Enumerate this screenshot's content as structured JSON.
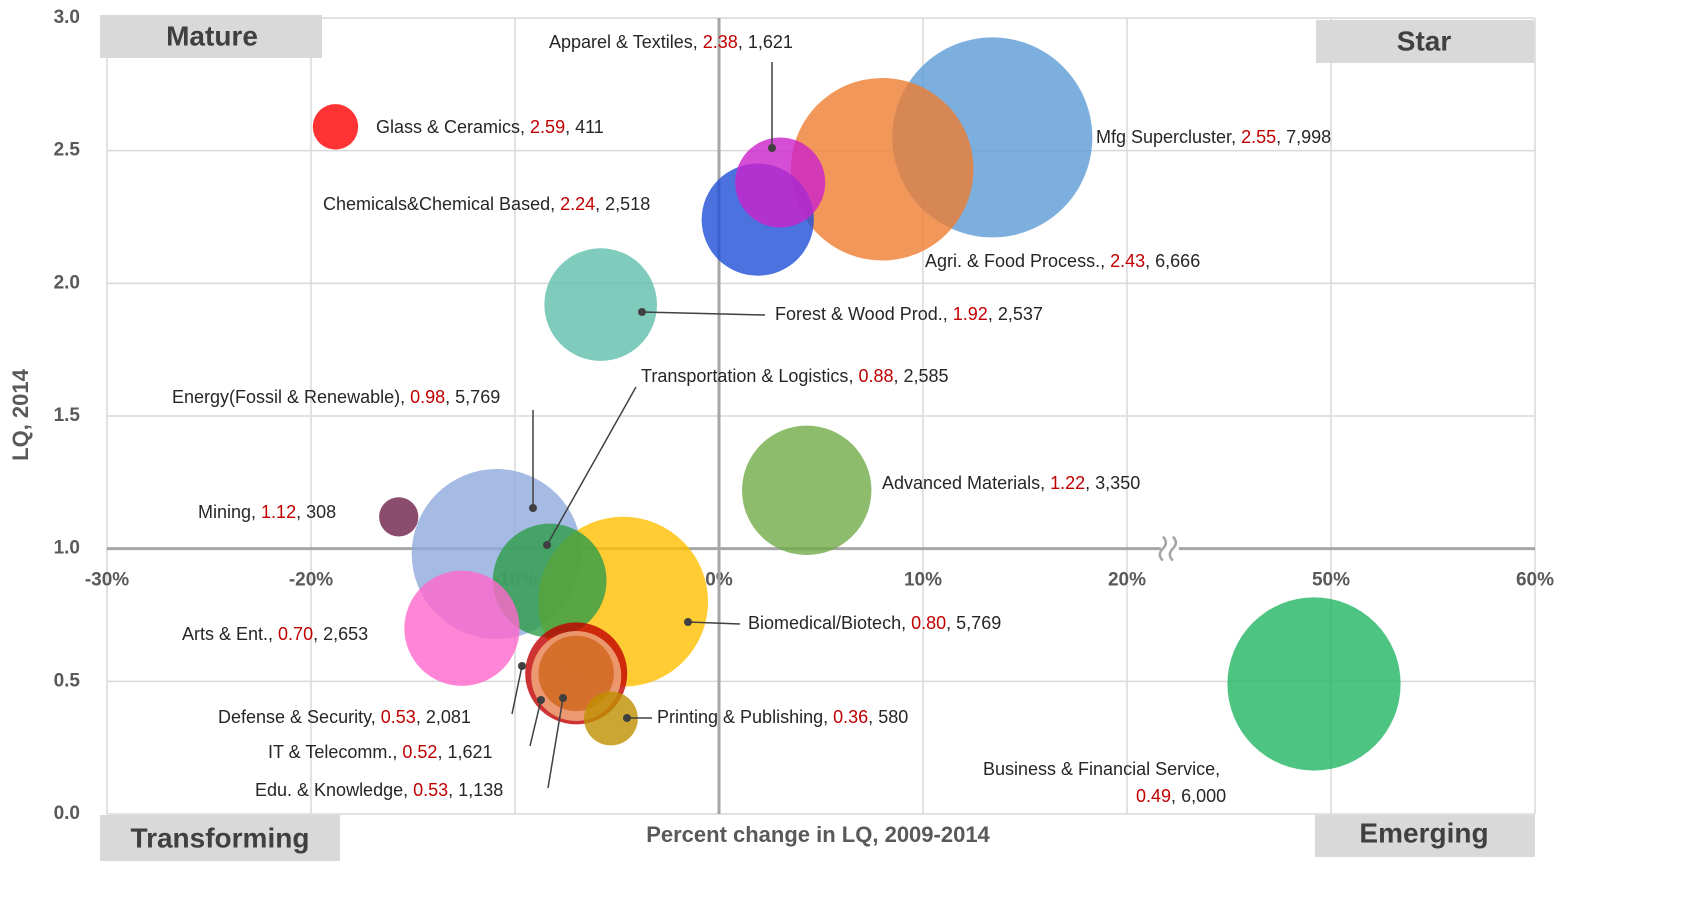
{
  "chart_data": {
    "type": "bubble",
    "xlabel": "Percent change in LQ, 2009-2014",
    "ylabel": "LQ, 2014",
    "separator": ", ",
    "annotations": [
      "Mature",
      "Star",
      "Transforming",
      "Emerging"
    ],
    "xlim": [
      -30,
      60
    ],
    "xbreak": [
      20,
      50
    ],
    "xticks": [
      {
        "value": -30,
        "label": "-30%"
      },
      {
        "value": -20,
        "label": "-20%"
      },
      {
        "value": -10,
        "label": "-10%"
      },
      {
        "value": 0,
        "label": "0%"
      },
      {
        "value": 10,
        "label": "10%"
      },
      {
        "value": 20,
        "label": "20%"
      },
      {
        "value": 50,
        "label": "50%"
      },
      {
        "value": 60,
        "label": "60%"
      }
    ],
    "ylim": [
      0,
      3
    ],
    "yticks": [
      {
        "value": 0,
        "label": "0.0"
      },
      0.5,
      {
        "value": 1,
        "label": "1.0"
      },
      1.5,
      {
        "value": 2,
        "label": "2.0"
      },
      2.5,
      {
        "value": 3,
        "label": "3.0"
      }
    ],
    "xaxis_cross": 1,
    "yaxis_cross": 0,
    "grid": true,
    "series": [
      {
        "name": "Mfg Supercluster",
        "color": "#5b9bd5",
        "x": [
          13.4
        ],
        "values": [
          2.55
        ],
        "value_labels": [
          "2.55"
        ],
        "sizes": [
          7998
        ],
        "size_labels": [
          "7,998"
        ]
      },
      {
        "name": "Agri. & Food Process.",
        "color": "#ed7d31",
        "x": [
          8.0
        ],
        "values": [
          2.43
        ],
        "value_labels": [
          "2.43"
        ],
        "sizes": [
          6666
        ],
        "size_labels": [
          "6,666"
        ]
      },
      {
        "name": "Chemicals&Chemical Based",
        "color": "#1f4fd8",
        "x": [
          1.9
        ],
        "values": [
          2.24
        ],
        "value_labels": [
          "2.24"
        ],
        "sizes": [
          2518
        ],
        "size_labels": [
          "2,518"
        ]
      },
      {
        "name": "Apparel & Textiles",
        "color": "#cc22cc",
        "x": [
          3.0
        ],
        "values": [
          2.38
        ],
        "value_labels": [
          "2.38"
        ],
        "sizes": [
          1621
        ],
        "size_labels": [
          "1,621"
        ]
      },
      {
        "name": "Glass & Ceramics",
        "color": "#ff0000",
        "x": [
          -18.8
        ],
        "values": [
          2.59
        ],
        "value_labels": [
          "2.59"
        ],
        "sizes": [
          411
        ],
        "size_labels": [
          "411"
        ]
      },
      {
        "name": "Forest & Wood Prod.",
        "color": "#5fbfad",
        "x": [
          -5.8
        ],
        "values": [
          1.92
        ],
        "value_labels": [
          "1.92"
        ],
        "sizes": [
          2537
        ],
        "size_labels": [
          "2,537"
        ]
      },
      {
        "name": "Advanced Materials",
        "color": "#70ad47",
        "x": [
          4.3
        ],
        "values": [
          1.22
        ],
        "value_labels": [
          "1.22"
        ],
        "sizes": [
          3350
        ],
        "size_labels": [
          "3,350"
        ]
      },
      {
        "name": "Mining",
        "color": "#6e1f48",
        "x": [
          -15.7
        ],
        "values": [
          1.12
        ],
        "value_labels": [
          "1.12"
        ],
        "sizes": [
          308
        ],
        "size_labels": [
          "308"
        ]
      },
      {
        "name": "Energy(Fossil & Renewable)",
        "color": "#8faadc",
        "x": [
          -10.9
        ],
        "values": [
          0.98
        ],
        "value_labels": [
          "0.98"
        ],
        "sizes": [
          5769
        ],
        "size_labels": [
          "5,769"
        ]
      },
      {
        "name": "Biomedical/Biotech",
        "color": "#ffc000",
        "x": [
          -4.7
        ],
        "values": [
          0.8
        ],
        "value_labels": [
          "0.80"
        ],
        "sizes": [
          5769
        ],
        "size_labels": [
          "5,769"
        ]
      },
      {
        "name": "Transportation & Logistics",
        "color": "#2e9e48",
        "x": [
          -8.3
        ],
        "values": [
          0.88
        ],
        "value_labels": [
          "0.88"
        ],
        "sizes": [
          2585
        ],
        "size_labels": [
          "2,585"
        ]
      },
      {
        "name": "Arts & Ent.",
        "color": "#ff66cc",
        "x": [
          -12.6
        ],
        "values": [
          0.7
        ],
        "value_labels": [
          "0.70"
        ],
        "sizes": [
          2653
        ],
        "size_labels": [
          "2,653"
        ]
      },
      {
        "name": "Defense & Security",
        "color": "#c00000",
        "x": [
          -7.0
        ],
        "values": [
          0.53
        ],
        "value_labels": [
          "0.53"
        ],
        "sizes": [
          2081
        ],
        "size_labels": [
          "2,081"
        ]
      },
      {
        "name": "IT & Telecomm.",
        "color": "#f4b183",
        "x": [
          -7.0
        ],
        "values": [
          0.52
        ],
        "value_labels": [
          "0.52"
        ],
        "sizes": [
          1621
        ],
        "size_labels": [
          "1,621"
        ]
      },
      {
        "name": "Edu. & Knowledge",
        "color": "#d0651a",
        "x": [
          -7.0
        ],
        "values": [
          0.53
        ],
        "value_labels": [
          "0.53"
        ],
        "sizes": [
          1138
        ],
        "size_labels": [
          "1,138"
        ]
      },
      {
        "name": "Printing & Publishing",
        "color": "#bf9000",
        "x": [
          -5.3
        ],
        "values": [
          0.36
        ],
        "value_labels": [
          "0.36"
        ],
        "sizes": [
          580
        ],
        "size_labels": [
          "580"
        ]
      },
      {
        "name": "Business & Financial Service",
        "color": "#22b563",
        "x": [
          47.5
        ],
        "values": [
          0.49
        ],
        "value_labels": [
          "0.49"
        ],
        "sizes": [
          6000
        ],
        "size_labels": [
          "6,000"
        ]
      }
    ]
  }
}
